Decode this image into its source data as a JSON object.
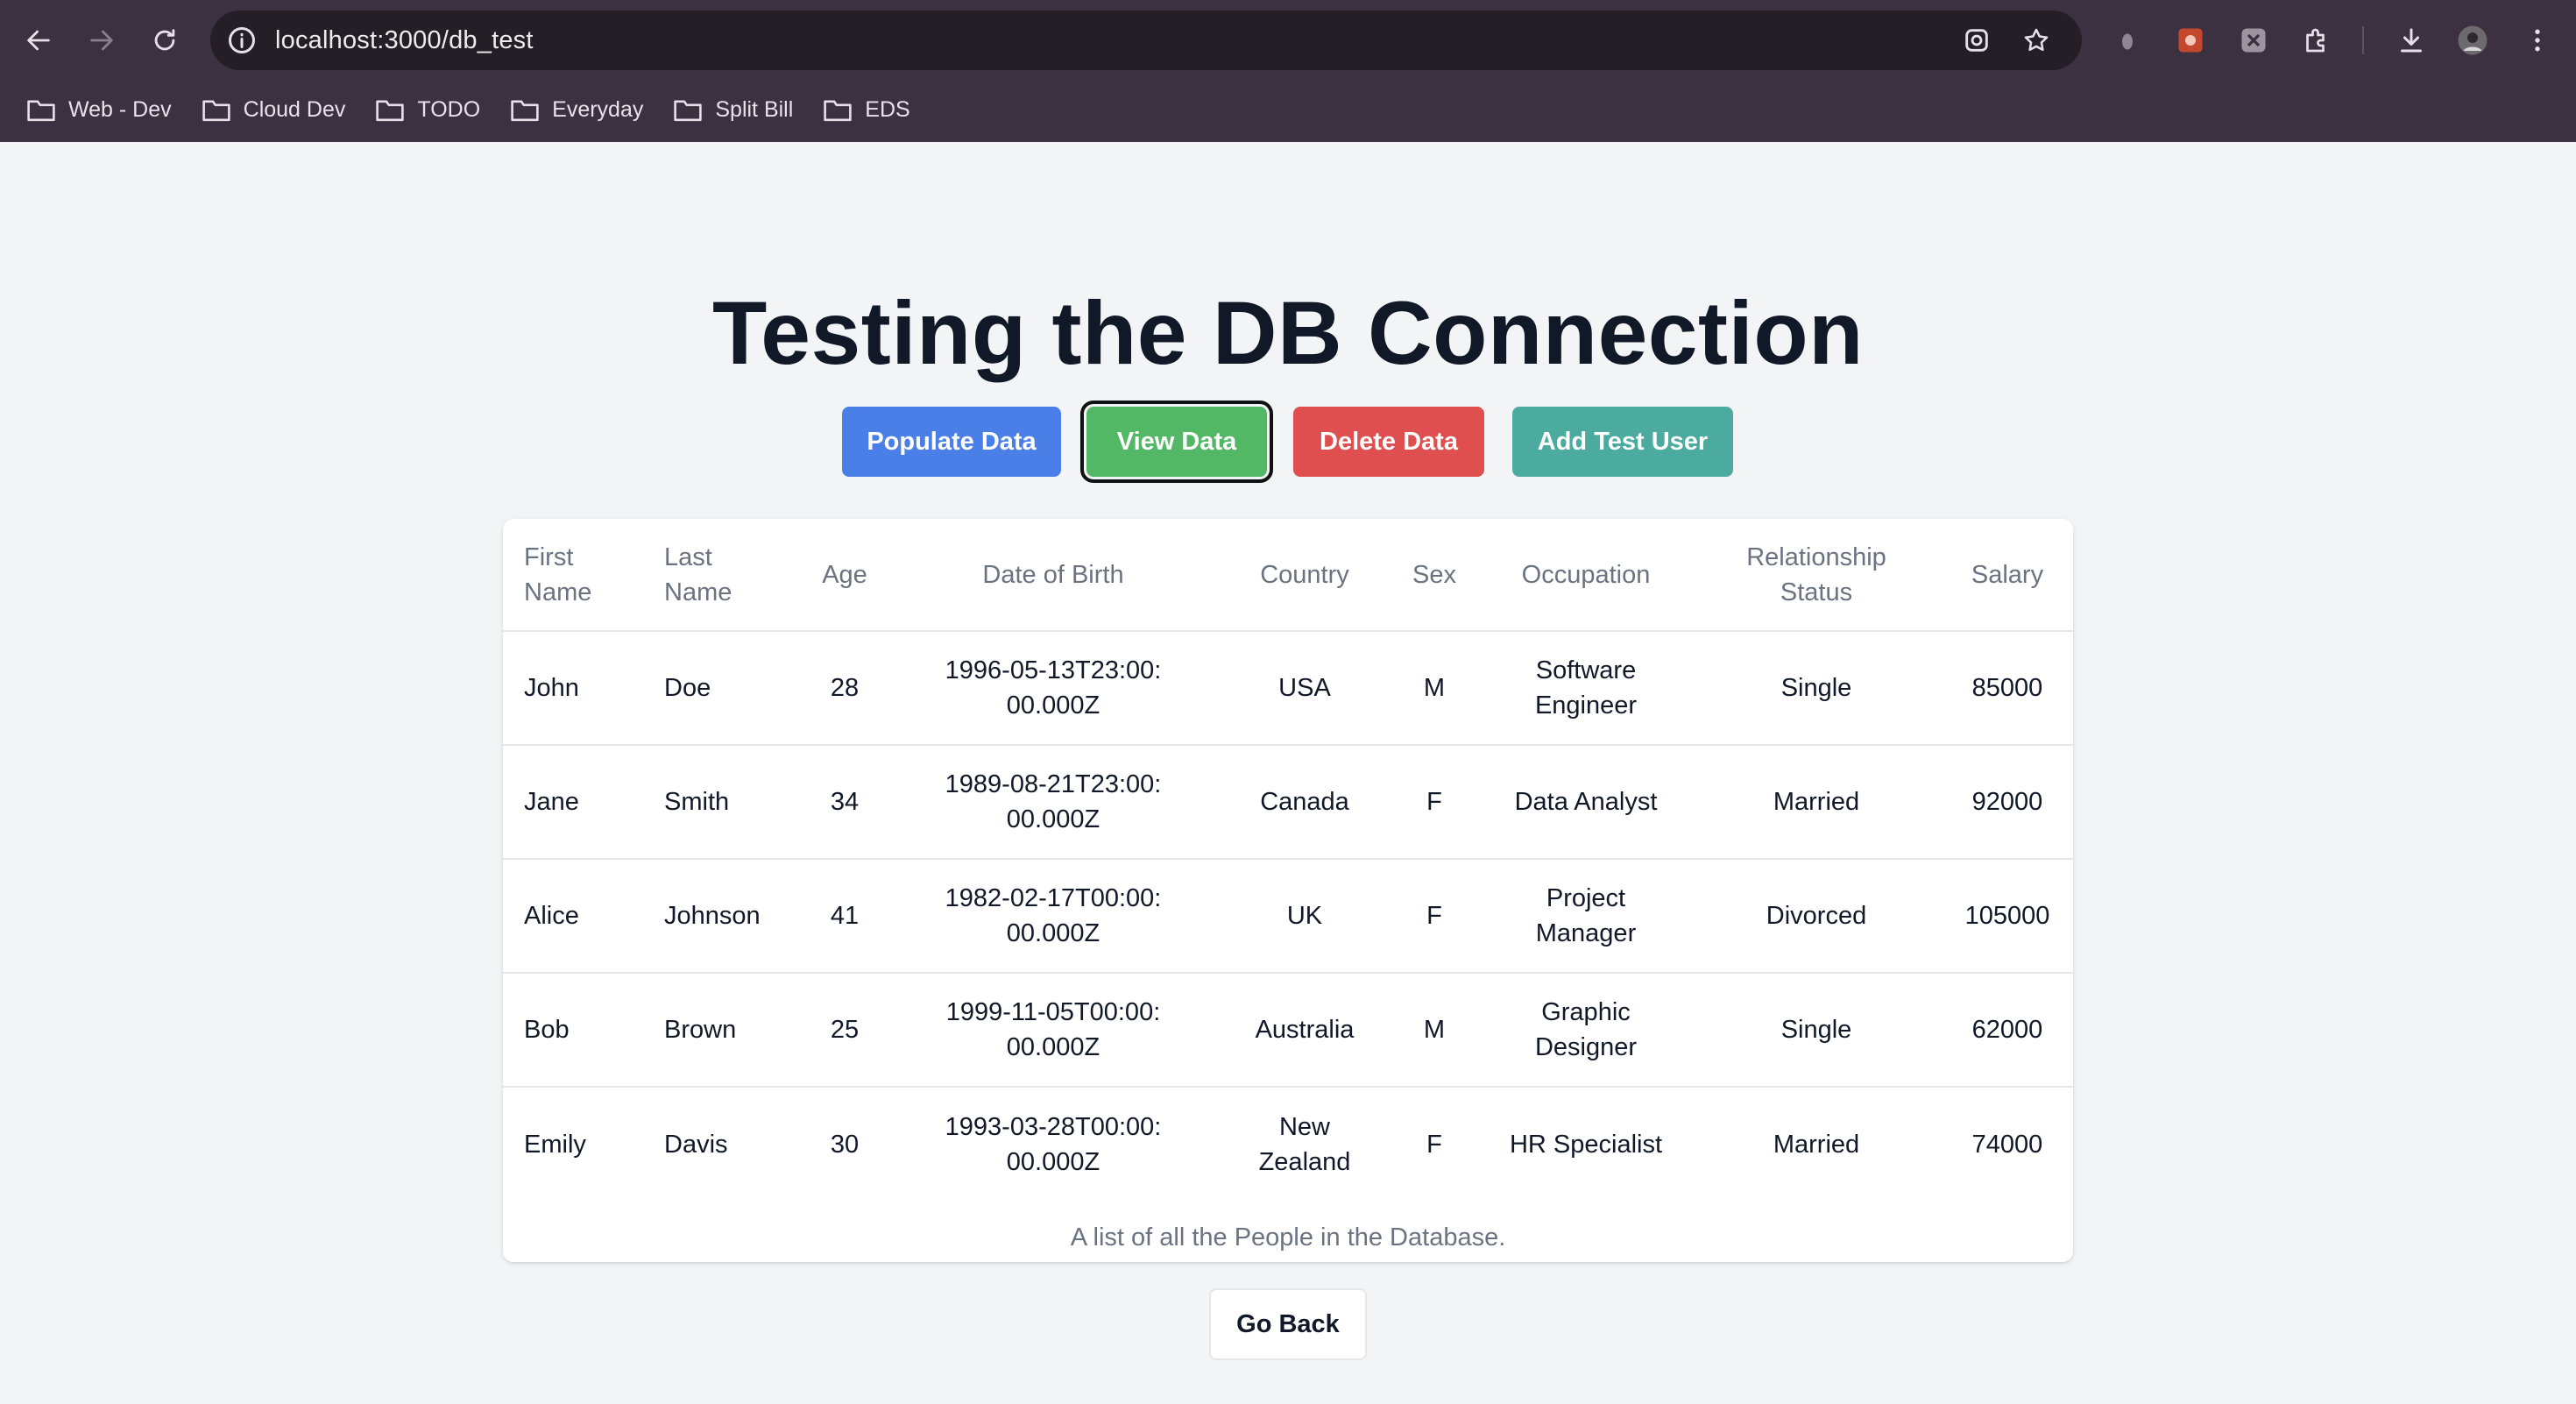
{
  "browser": {
    "url": "localhost:3000/db_test",
    "bookmarks": [
      {
        "label": "Web - Dev"
      },
      {
        "label": "Cloud Dev"
      },
      {
        "label": "TODO"
      },
      {
        "label": "Everyday"
      },
      {
        "label": "Split Bill"
      },
      {
        "label": "EDS"
      }
    ],
    "icons": {
      "back": "arrow-left-icon",
      "forward": "arrow-right-icon",
      "reload": "reload-icon",
      "site_info": "info-icon",
      "lens": "google-lens-icon",
      "bookmark": "star-icon",
      "extensions": [
        "extension-grey-icon",
        "extension-red-icon",
        "extension-dark-icon",
        "puzzle-icon"
      ],
      "download": "download-icon",
      "profile": "avatar",
      "menu": "kebab-menu-icon"
    }
  },
  "page": {
    "title": "Testing the DB Connection",
    "buttons": {
      "populate": "Populate Data",
      "view": "View Data",
      "delete": "Delete Data",
      "add": "Add Test User",
      "back": "Go Back"
    },
    "colors": {
      "populate": "#4a7fe8",
      "view": "#52b866",
      "delete": "#df4f4f",
      "add": "#4aab9e"
    },
    "table": {
      "headers": [
        "First Name",
        "Last Name",
        "Age",
        "Date of Birth",
        "Country",
        "Sex",
        "Occupation",
        "Relationship Status",
        "Salary"
      ],
      "rows": [
        [
          "John",
          "Doe",
          "28",
          "1996-05-13T23:00:00.000Z",
          "USA",
          "M",
          "Software Engineer",
          "Single",
          "85000"
        ],
        [
          "Jane",
          "Smith",
          "34",
          "1989-08-21T23:00:00.000Z",
          "Canada",
          "F",
          "Data Analyst",
          "Married",
          "92000"
        ],
        [
          "Alice",
          "Johnson",
          "41",
          "1982-02-17T00:00:00.000Z",
          "UK",
          "F",
          "Project Manager",
          "Divorced",
          "105000"
        ],
        [
          "Bob",
          "Brown",
          "25",
          "1999-11-05T00:00:00.000Z",
          "Australia",
          "M",
          "Graphic Designer",
          "Single",
          "62000"
        ],
        [
          "Emily",
          "Davis",
          "30",
          "1993-03-28T00:00:00.000Z",
          "New Zealand",
          "F",
          "HR Specialist",
          "Married",
          "74000"
        ]
      ],
      "caption": "A list of all the People in the Database."
    }
  }
}
